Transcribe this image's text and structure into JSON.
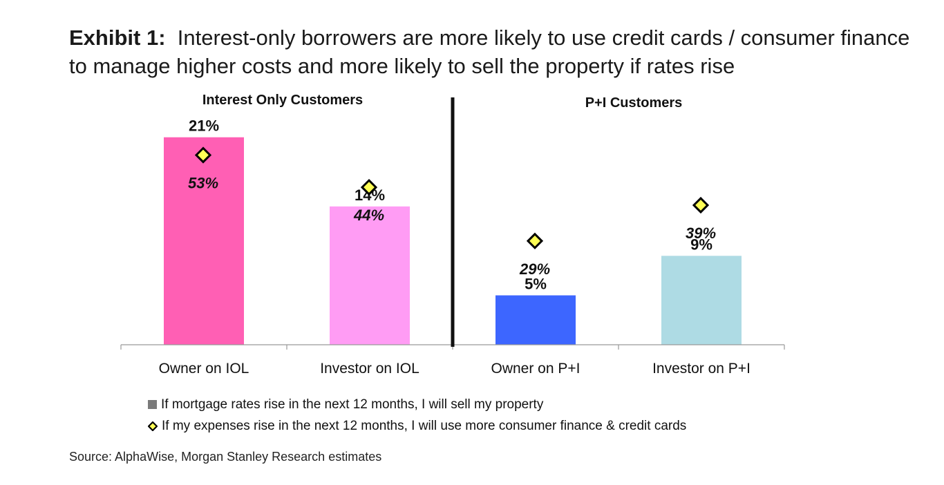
{
  "title": {
    "lead": "Exhibit 1:",
    "text": "Interest-only borrowers are more likely to use credit cards / consumer finance to manage higher costs and more likely to sell the property if rates rise"
  },
  "chart_data": {
    "type": "bar",
    "panels": [
      {
        "title": "Interest Only Customers",
        "categories": [
          "Owner on IOL",
          "Investor on IOL"
        ]
      },
      {
        "title": "P+I Customers",
        "categories": [
          "Owner on P+I",
          "Investor on P+I"
        ]
      }
    ],
    "categories": [
      "Owner on IOL",
      "Investor on IOL",
      "Owner on P+I",
      "Investor on P+I"
    ],
    "series": [
      {
        "name": "If mortgage rates rise in the next 12 months, I will sell my property",
        "marker": "bar",
        "values": [
          21,
          14,
          5,
          9
        ],
        "labels": [
          "21%",
          "14%",
          "5%",
          "9%"
        ]
      },
      {
        "name": "If my expenses rise in the next 12 months, I will use more consumer finance & credit cards",
        "marker": "diamond",
        "values": [
          53,
          44,
          29,
          39
        ],
        "labels": [
          "53%",
          "44%",
          "29%",
          "39%"
        ]
      }
    ],
    "bar_colors": [
      "#ff5fb4",
      "#ff9cf4",
      "#3d66ff",
      "#aedbe4"
    ],
    "diamond_color": "#ffff55",
    "grid": false,
    "legend_position": "bottom",
    "source": "Source: AlphaWise, Morgan Stanley Research estimates"
  }
}
